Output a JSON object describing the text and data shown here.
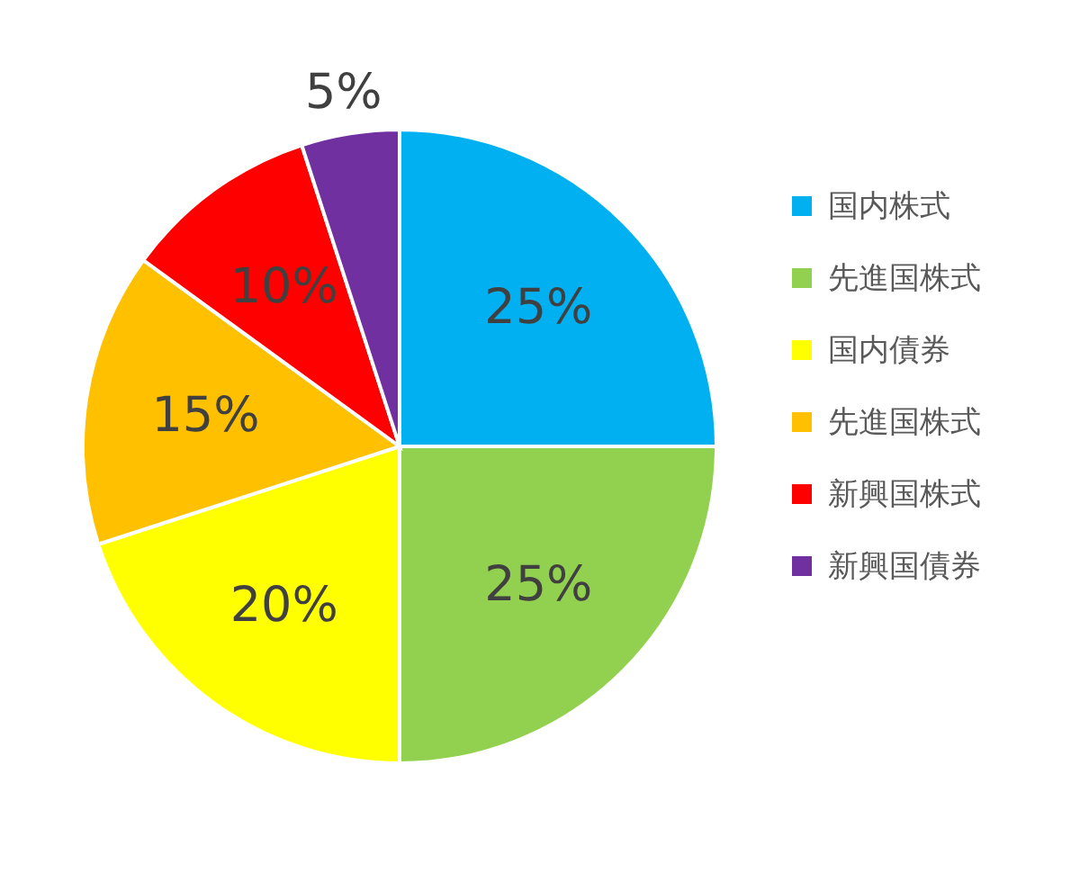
{
  "chart_data": {
    "type": "pie",
    "categories": [
      "国内株式",
      "先進国株式",
      "国内債券",
      "先進国株式",
      "新興国株式",
      "新興国債券"
    ],
    "values": [
      25,
      25,
      20,
      15,
      10,
      5
    ],
    "colors": [
      "#00b0f0",
      "#92d050",
      "#ffff00",
      "#ffc000",
      "#ff0000",
      "#7030a0"
    ],
    "value_labels": [
      "25%",
      "25%",
      "20%",
      "15%",
      "10%",
      "5%"
    ],
    "legend": "right"
  }
}
